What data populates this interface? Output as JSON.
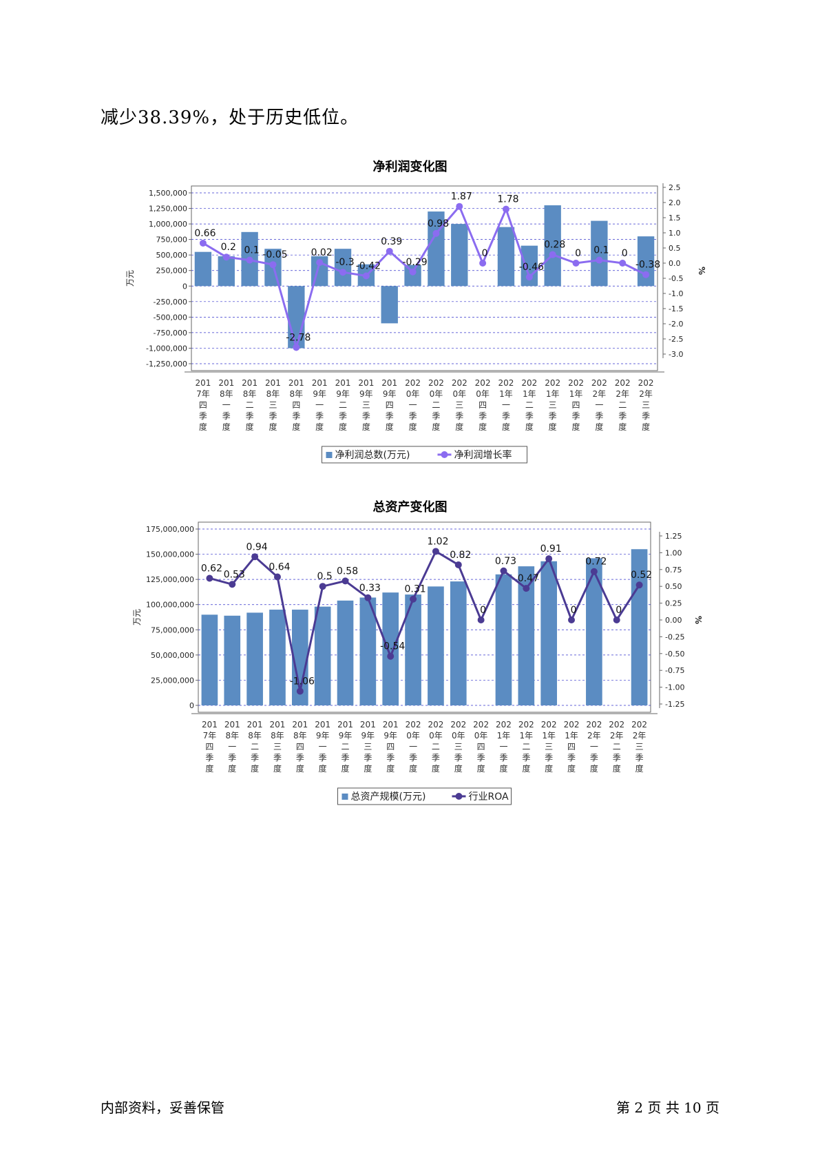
{
  "intro_text": "减少38.39%，处于历史低位。",
  "footer": {
    "left": "内部资料，妥善保管",
    "page_info": "第 2 页   共 10 页"
  },
  "colors": {
    "bar": "#5b8cc2",
    "line1": "#8b6cf0",
    "line2": "#4b3b93",
    "grid": "#3333cc"
  },
  "categories": [
    "2017年四季度",
    "2018年一季度",
    "2018年二季度",
    "2018年三季度",
    "2018年四季度",
    "2019年一季度",
    "2019年二季度",
    "2019年三季度",
    "2019年四季度",
    "2020年一季度",
    "2020年二季度",
    "2020年三季度",
    "2020年四季度",
    "2021年一季度",
    "2021年二季度",
    "2021年三季度",
    "2021年四季度",
    "2022年一季度",
    "2022年二季度",
    "2022年三季度"
  ],
  "chart_data": [
    {
      "type": "bar+line",
      "title": "净利润变化图",
      "ylabel": "万元",
      "y2label": "%",
      "ylim": [
        -1250000,
        1500000
      ],
      "y2lim": [
        -3.0,
        2.5
      ],
      "y_ticks": [
        "1,500,000",
        "1,250,000",
        "1,000,000",
        "750,000",
        "500,000",
        "250,000",
        "0",
        "-250,000",
        "-500,000",
        "-750,000",
        "-1,000,000",
        "-1,250,000"
      ],
      "y2_ticks": [
        "2.5",
        "2.0",
        "1.5",
        "1.0",
        "0.5",
        "0.0",
        "-0.5",
        "-1.0",
        "-1.5",
        "-2.0",
        "-2.5",
        "-3.0"
      ],
      "legend": {
        "bar": "净利润总数(万元)",
        "line": "净利润增长率"
      },
      "bars": [
        550000,
        480000,
        870000,
        600000,
        -1000000,
        480000,
        600000,
        350000,
        -600000,
        340000,
        1200000,
        1000000,
        0,
        950000,
        650000,
        1300000,
        0,
        1050000,
        0,
        800000
      ],
      "line": [
        0.66,
        0.2,
        0.1,
        -0.05,
        -2.78,
        0.02,
        -0.3,
        -0.42,
        0.39,
        -0.29,
        0.98,
        1.87,
        0,
        1.78,
        -0.46,
        0.28,
        0,
        0.1,
        0,
        -0.38
      ],
      "line_labels": [
        "0.66",
        "0.2",
        "0.1",
        "-0.05",
        "-2.78",
        "0.02",
        "-0.3",
        "-0.42",
        "0.39",
        "-0.29",
        "0.98",
        "1.87",
        "0",
        "1.78",
        "-0.46",
        "0.28",
        "0",
        "0.1",
        "0",
        "-0.38"
      ]
    },
    {
      "type": "bar+line",
      "title": "总资产变化图",
      "ylabel": "万元",
      "y2label": "%",
      "ylim": [
        0,
        175000000
      ],
      "y2lim": [
        -1.25,
        1.25
      ],
      "y_ticks": [
        "175,000,000",
        "150,000,000",
        "125,000,000",
        "100,000,000",
        "75,000,000",
        "50,000,000",
        "25,000,000",
        "0"
      ],
      "y2_ticks": [
        "1.25",
        "1.00",
        "0.75",
        "0.50",
        "0.25",
        "0.00",
        "-0.25",
        "-0.50",
        "-0.75",
        "-1.00",
        "-1.25"
      ],
      "legend": {
        "bar": "总资产规模(万元)",
        "line": "行业ROA"
      },
      "bars": [
        90000000,
        89000000,
        92000000,
        95000000,
        95000000,
        98000000,
        104000000,
        107000000,
        112000000,
        110000000,
        118000000,
        123000000,
        0,
        130000000,
        138000000,
        143000000,
        0,
        146000000,
        0,
        155000000
      ],
      "line": [
        0.62,
        0.53,
        0.94,
        0.64,
        -1.06,
        0.5,
        0.58,
        0.33,
        -0.54,
        0.31,
        1.02,
        0.82,
        0,
        0.73,
        0.47,
        0.91,
        0,
        0.72,
        0,
        0.52
      ],
      "line_labels": [
        "0.62",
        "0.53",
        "0.94",
        "0.64",
        "-1.06",
        "0.5",
        "0.58",
        "0.33",
        "-0.54",
        "0.31",
        "1.02",
        "0.82",
        "0",
        "0.73",
        "0.47",
        "0.91",
        "0",
        "0.72",
        "0",
        "0.52"
      ]
    }
  ]
}
